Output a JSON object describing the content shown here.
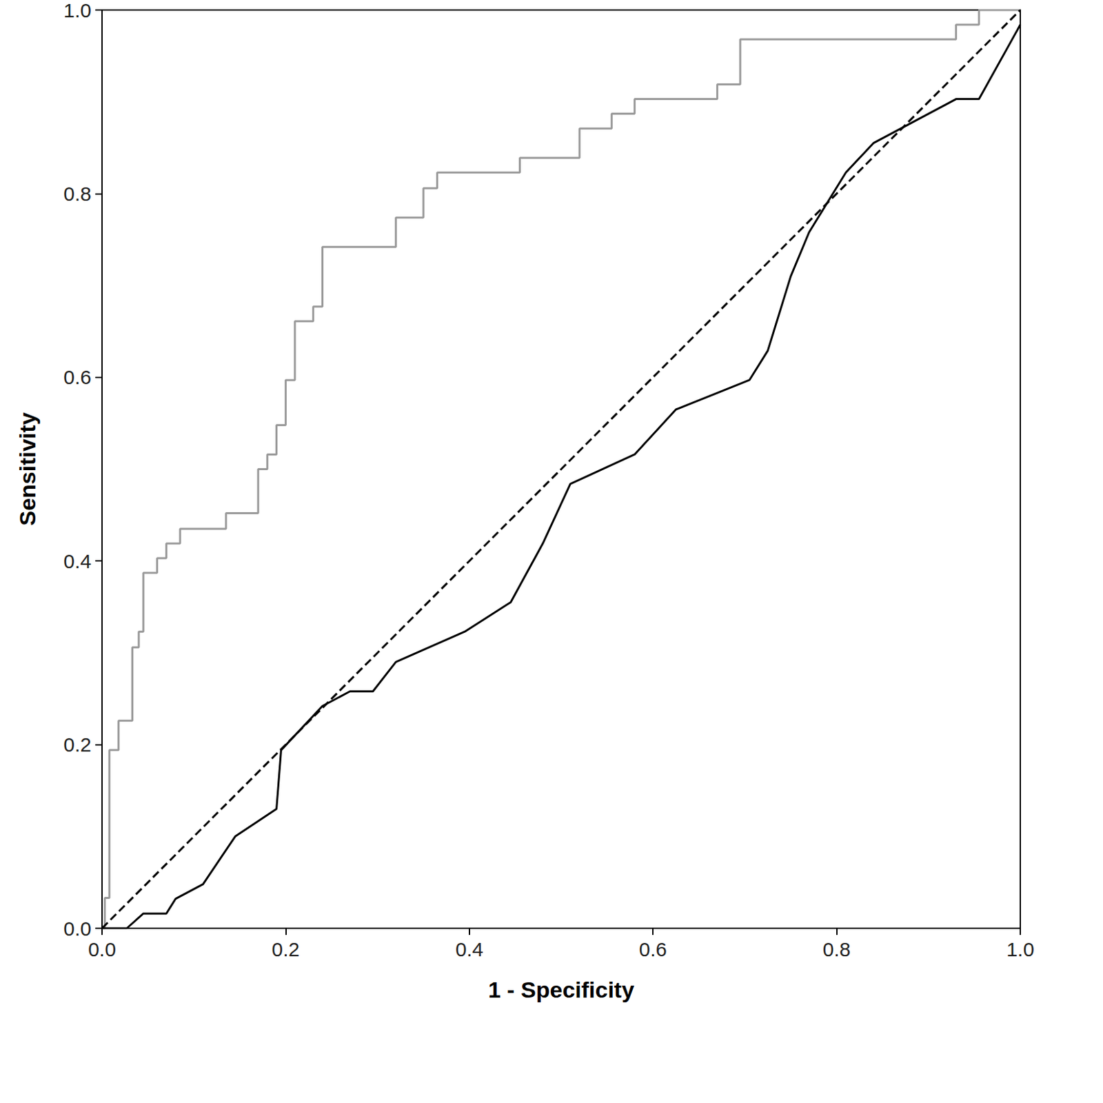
{
  "chart_data": {
    "type": "line",
    "x_label": "1 - Specificity",
    "y_label": "Sensitivity",
    "xlim": [
      0,
      1
    ],
    "ylim": [
      0,
      1
    ],
    "xticks": [
      {
        "value": 0,
        "label": "0.0"
      },
      0.2,
      0.4,
      0.6,
      0.8,
      {
        "value": 1,
        "label": "1.0"
      }
    ],
    "yticks": [
      {
        "value": 0,
        "label": "0.0"
      },
      0.2,
      0.4,
      0.6,
      0.8,
      {
        "value": 1,
        "label": "1.0"
      }
    ],
    "grid": false,
    "marker": "none",
    "series": [
      {
        "color": "#999999",
        "line_style": "solid",
        "x": [
          0,
          0.003,
          0.003,
          0.008,
          0.008,
          0.018,
          0.018,
          0.033,
          0.033,
          0.04,
          0.04,
          0.045,
          0.045,
          0.06,
          0.06,
          0.07,
          0.07,
          0.085,
          0.085,
          0.135,
          0.135,
          0.17,
          0.17,
          0.18,
          0.18,
          0.19,
          0.19,
          0.2,
          0.2,
          0.21,
          0.21,
          0.23,
          0.23,
          0.24,
          0.24,
          0.32,
          0.32,
          0.35,
          0.35,
          0.365,
          0.365,
          0.455,
          0.455,
          0.52,
          0.52,
          0.555,
          0.555,
          0.58,
          0.58,
          0.67,
          0.67,
          0.695,
          0.695,
          0.93,
          0.93,
          0.955,
          0.955,
          1
        ],
        "values": [
          0,
          0,
          0.033,
          0.033,
          0.194,
          0.194,
          0.226,
          0.226,
          0.306,
          0.306,
          0.323,
          0.323,
          0.387,
          0.387,
          0.403,
          0.403,
          0.419,
          0.419,
          0.435,
          0.435,
          0.452,
          0.452,
          0.5,
          0.5,
          0.516,
          0.516,
          0.548,
          0.548,
          0.597,
          0.597,
          0.661,
          0.661,
          0.677,
          0.677,
          0.742,
          0.742,
          0.774,
          0.774,
          0.806,
          0.806,
          0.823,
          0.823,
          0.839,
          0.839,
          0.871,
          0.871,
          0.887,
          0.887,
          0.903,
          0.903,
          0.919,
          0.919,
          0.968,
          0.968,
          0.984,
          0.984,
          1,
          1
        ]
      },
      {
        "color": "#000000",
        "line_style": "solid",
        "x": [
          0,
          0.027,
          0.045,
          0.07,
          0.08,
          0.11,
          0.145,
          0.19,
          0.195,
          0.24,
          0.27,
          0.295,
          0.32,
          0.395,
          0.445,
          0.48,
          0.51,
          0.58,
          0.625,
          0.705,
          0.725,
          0.75,
          0.77,
          0.81,
          0.84,
          0.93,
          0.955,
          1
        ],
        "values": [
          0,
          0,
          0.016,
          0.016,
          0.032,
          0.048,
          0.1,
          0.13,
          0.194,
          0.242,
          0.258,
          0.258,
          0.29,
          0.323,
          0.355,
          0.419,
          0.484,
          0.516,
          0.565,
          0.597,
          0.629,
          0.71,
          0.758,
          0.823,
          0.855,
          0.903,
          0.903,
          0.984
        ]
      },
      {
        "color": "#000000",
        "line_style": "dashed",
        "x": [
          0,
          1
        ],
        "values": [
          0,
          1
        ]
      }
    ]
  }
}
